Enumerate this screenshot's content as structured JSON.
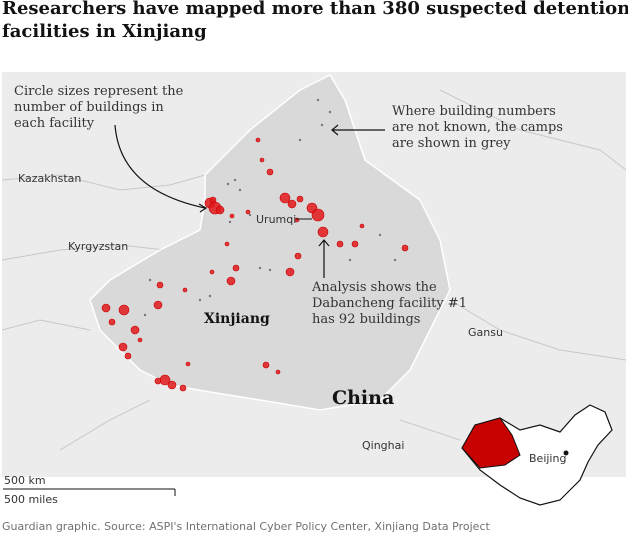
{
  "header": {
    "title": [
      "Researchers have mapped more than 380 suspected detention",
      "facilities in Xinjiang"
    ]
  },
  "annotations": {
    "circle_size": [
      "Circle sizes represent the",
      "number of buildings in",
      "each facility"
    ],
    "grey": [
      "Where building numbers",
      "are not known, the camps",
      "are shown in grey"
    ],
    "dabancheng": [
      "Analysis shows the",
      "Dabancheng facility #1",
      "has 92 buildings"
    ]
  },
  "places": {
    "kazakhstan": "Kazakhstan",
    "kyrgyzstan": "Kyrgyzstan",
    "urumqi": "Urumqi",
    "xinjiang": "Xinjiang",
    "gansu": "Gansu",
    "china": "China",
    "qinghai": "Qinghai",
    "beijing": "Beijing"
  },
  "scale": {
    "km": "500 km",
    "miles": "500 miles"
  },
  "footer": {
    "source": "Guardian graphic. Source: ASPI's International Cyber Policy Center, Xinjiang Data Project"
  }
}
